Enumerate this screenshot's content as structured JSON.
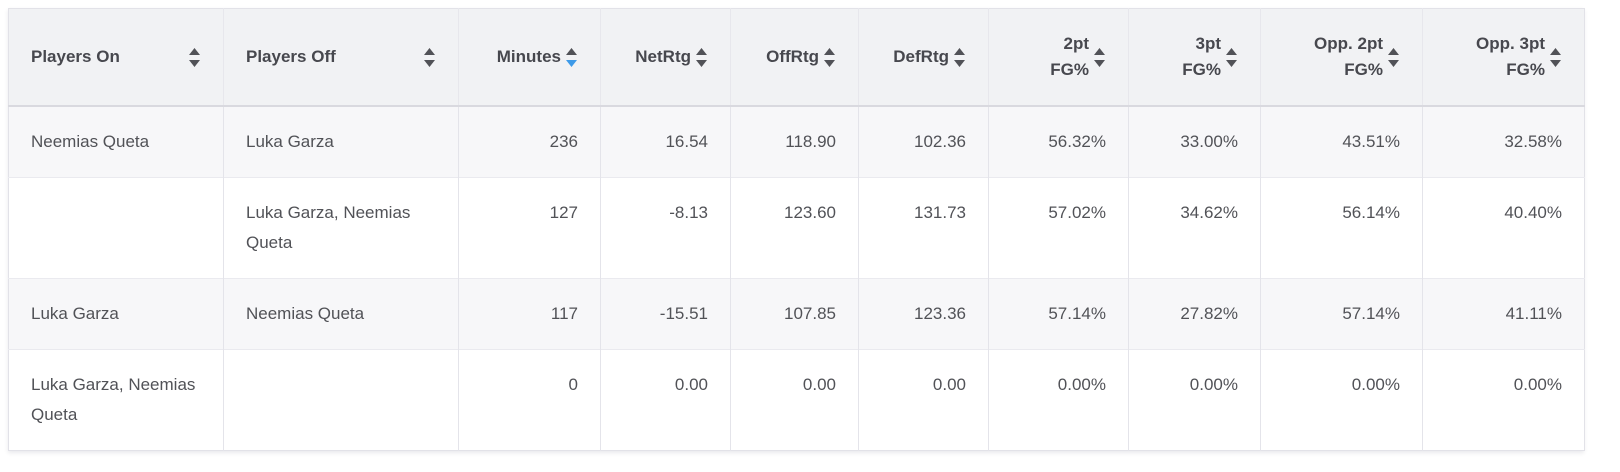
{
  "table": {
    "columns": [
      {
        "id": "players-on",
        "label": "Players On",
        "lines": [
          "Players On"
        ],
        "align": "left",
        "sort": "none"
      },
      {
        "id": "players-off",
        "label": "Players Off",
        "lines": [
          "Players Off"
        ],
        "align": "left",
        "sort": "none"
      },
      {
        "id": "minutes",
        "label": "Minutes",
        "lines": [
          "Minutes"
        ],
        "align": "right",
        "sort": "desc"
      },
      {
        "id": "netrtg",
        "label": "NetRtg",
        "lines": [
          "NetRtg"
        ],
        "align": "right",
        "sort": "none"
      },
      {
        "id": "offrtg",
        "label": "OffRtg",
        "lines": [
          "OffRtg"
        ],
        "align": "right",
        "sort": "none"
      },
      {
        "id": "defrtg",
        "label": "DefRtg",
        "lines": [
          "DefRtg"
        ],
        "align": "right",
        "sort": "none"
      },
      {
        "id": "fg2",
        "label": "2pt FG%",
        "lines": [
          "2pt",
          "FG%"
        ],
        "align": "right",
        "sort": "none"
      },
      {
        "id": "fg3",
        "label": "3pt FG%",
        "lines": [
          "3pt",
          "FG%"
        ],
        "align": "right",
        "sort": "none"
      },
      {
        "id": "opp-fg2",
        "label": "Opp. 2pt FG%",
        "lines": [
          "Opp. 2pt",
          "FG%"
        ],
        "align": "right",
        "sort": "none"
      },
      {
        "id": "opp-fg3",
        "label": "Opp. 3pt FG%",
        "lines": [
          "Opp. 3pt",
          "FG%"
        ],
        "align": "right",
        "sort": "none"
      }
    ],
    "rows": [
      [
        "Neemias Queta",
        "Luka Garza",
        "236",
        "16.54",
        "118.90",
        "102.36",
        "56.32%",
        "33.00%",
        "43.51%",
        "32.58%"
      ],
      [
        "",
        "Luka Garza, Neemias Queta",
        "127",
        "-8.13",
        "123.60",
        "131.73",
        "57.02%",
        "34.62%",
        "56.14%",
        "40.40%"
      ],
      [
        "Luka Garza",
        "Neemias Queta",
        "117",
        "-15.51",
        "107.85",
        "123.36",
        "57.14%",
        "27.82%",
        "57.14%",
        "41.11%"
      ],
      [
        "Luka Garza, Neemias Queta",
        "",
        "0",
        "0.00",
        "0.00",
        "0.00",
        "0.00%",
        "0.00%",
        "0.00%",
        "0.00%"
      ]
    ],
    "colors": {
      "sort_active": "#3d9ae8",
      "sort_inactive": "#515257"
    }
  }
}
